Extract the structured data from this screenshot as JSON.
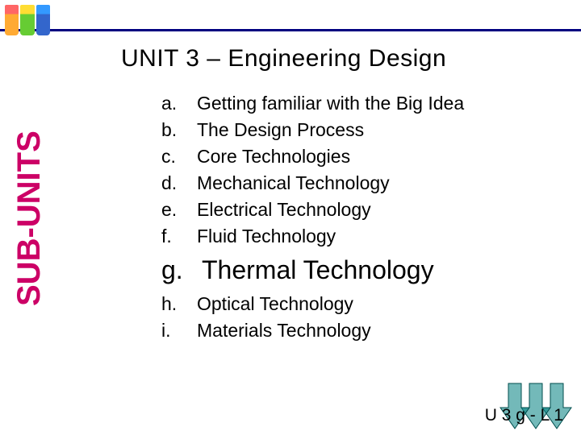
{
  "icon": {
    "cups": [
      {
        "top_color": "#ff6666",
        "body_color": "#ffaa33"
      },
      {
        "top_color": "#ffdd33",
        "body_color": "#66cc33"
      },
      {
        "top_color": "#3399ff",
        "body_color": "#3366cc"
      }
    ]
  },
  "title": {
    "text": "UNIT 3 – Engineering Design",
    "fontsize": 30
  },
  "sub_units_label": {
    "text": "SUB-UNITS",
    "fontsize": 40,
    "color": "#cc0066"
  },
  "list": {
    "normal_fontsize": 23,
    "emphasis_fontsize": 32,
    "items": [
      {
        "letter": "a.",
        "text": "Getting familiar with the Big Idea",
        "emphasis": false
      },
      {
        "letter": "b.",
        "text": "The Design Process",
        "emphasis": false
      },
      {
        "letter": "c.",
        "text": "Core Technologies",
        "emphasis": false
      },
      {
        "letter": "d.",
        "text": "Mechanical Technology",
        "emphasis": false
      },
      {
        "letter": "e.",
        "text": "Electrical Technology",
        "emphasis": false
      },
      {
        "letter": "f.",
        "text": "Fluid Technology",
        "emphasis": false
      },
      {
        "letter": "g.",
        "text": "Thermal Technology",
        "emphasis": true
      },
      {
        "letter": "h.",
        "text": "Optical Technology",
        "emphasis": false
      },
      {
        "letter": "i.",
        "text": "Materials Technology",
        "emphasis": false
      }
    ]
  },
  "arrows": {
    "colors": [
      "#008080",
      "#008080",
      "#008080"
    ],
    "fill_opacity": 0.55,
    "stroke": "#004d4d",
    "offsets": [
      0,
      26,
      52
    ]
  },
  "footer": {
    "text": "U 3 g - L 1",
    "fontsize": 21
  },
  "colors": {
    "border": "#000080",
    "background": "#ffffff",
    "text": "#000000"
  }
}
